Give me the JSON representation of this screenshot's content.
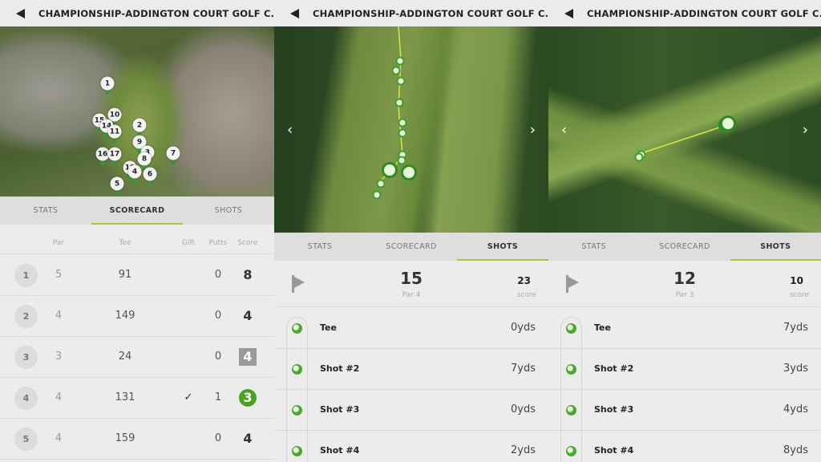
{
  "title": "CHAMPIONSHIP-ADDINGTON COURT GOLF C...",
  "tabs": [
    "STATS",
    "SCORECARD",
    "SHOTS"
  ],
  "accent": "#a8c83a",
  "colors": {
    "birdie": "#4aa21e",
    "bogey": "#9a9a9a",
    "ball": "#4aa832"
  },
  "icons": {
    "back": "back-arrow-icon",
    "flag": "flag-icon",
    "ball": "golf-ball-icon",
    "prev": "chevron-left-icon",
    "next": "chevron-right-icon",
    "check": "check-icon"
  },
  "scorecard": {
    "headers": {
      "par": "Par",
      "tee": "Tee",
      "gir": "GIR",
      "putts": "Putts",
      "score": "Score"
    },
    "rows": [
      {
        "hole": "1",
        "par": "5",
        "tee": "91",
        "gir": "",
        "putts": "0",
        "score": "8",
        "type": "normal"
      },
      {
        "hole": "2",
        "par": "4",
        "tee": "149",
        "gir": "",
        "putts": "0",
        "score": "4",
        "type": "normal"
      },
      {
        "hole": "3",
        "par": "3",
        "tee": "24",
        "gir": "",
        "putts": "0",
        "score": "4",
        "type": "bogey"
      },
      {
        "hole": "4",
        "par": "4",
        "tee": "131",
        "gir": "✓",
        "putts": "1",
        "score": "3",
        "type": "birdie"
      },
      {
        "hole": "5",
        "par": "4",
        "tee": "159",
        "gir": "",
        "putts": "0",
        "score": "4",
        "type": "normal"
      }
    ],
    "map_pins": [
      "1",
      "10",
      "15",
      "14",
      "11",
      "2",
      "9",
      "3",
      "16",
      "17",
      "18",
      "8",
      "7",
      "4",
      "6",
      "5"
    ]
  },
  "shots_panels": [
    {
      "hole": "15",
      "par": "Par 4",
      "score": "23",
      "score_label": "score",
      "shots": [
        {
          "label": "Tee",
          "dist": "0yds"
        },
        {
          "label": "Shot #2",
          "dist": "7yds"
        },
        {
          "label": "Shot #3",
          "dist": "0yds"
        },
        {
          "label": "Shot #4",
          "dist": "2yds"
        }
      ]
    },
    {
      "hole": "12",
      "par": "Par 3",
      "score": "10",
      "score_label": "score",
      "shots": [
        {
          "label": "Tee",
          "dist": "7yds"
        },
        {
          "label": "Shot #2",
          "dist": "3yds"
        },
        {
          "label": "Shot #3",
          "dist": "4yds"
        },
        {
          "label": "Shot #4",
          "dist": "8yds"
        }
      ]
    }
  ]
}
